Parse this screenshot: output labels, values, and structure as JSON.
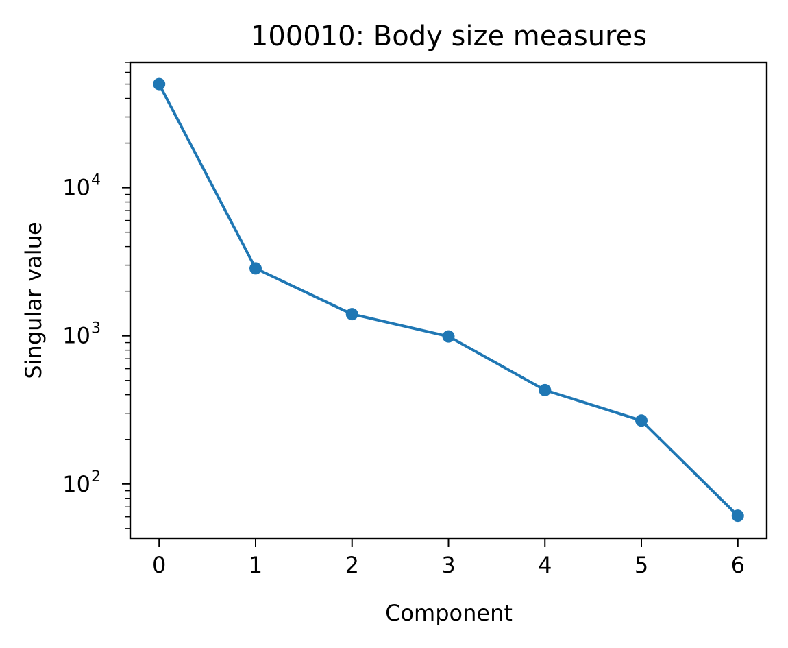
{
  "chart_data": {
    "type": "line",
    "title": "100010: Body size measures",
    "xlabel": "Component",
    "ylabel": "Singular value",
    "yscale": "log",
    "xlim": [
      -0.3,
      6.3
    ],
    "ylim": [
      43,
      70000
    ],
    "x": [
      0,
      1,
      2,
      3,
      4,
      5,
      6
    ],
    "xticks": [
      "0",
      "1",
      "2",
      "3",
      "4",
      "5",
      "6"
    ],
    "yticks": [
      {
        "base": "10",
        "exp": "2",
        "value": 100
      },
      {
        "base": "10",
        "exp": "3",
        "value": 1000
      },
      {
        "base": "10",
        "exp": "4",
        "value": 10000
      }
    ],
    "series": [
      {
        "values": [
          50000,
          2850,
          1400,
          990,
          430,
          268,
          61
        ],
        "color": "#1f77b4",
        "marker": "circle"
      }
    ],
    "grid": false,
    "legend": false
  }
}
